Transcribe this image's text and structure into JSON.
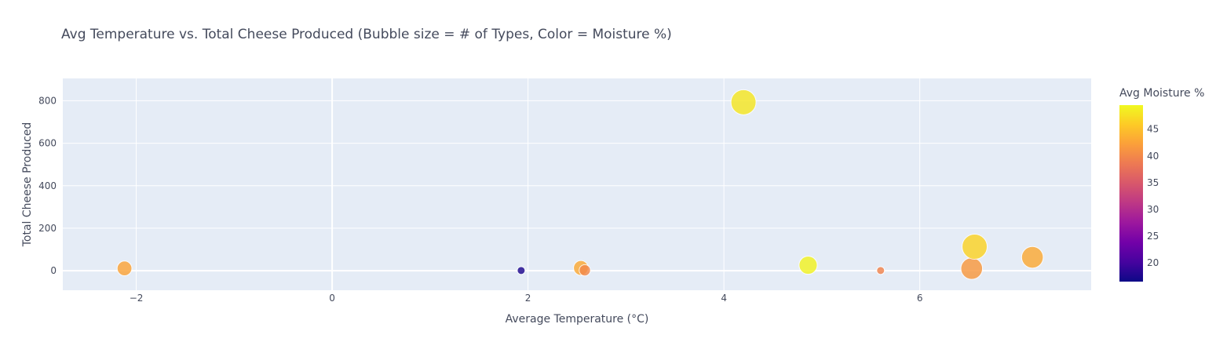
{
  "chart_data": {
    "type": "scatter",
    "title": "Avg Temperature vs. Total Cheese Produced (Bubble size = # of Types, Color = Moisture %)",
    "xlabel": "Average Temperature (°C)",
    "ylabel": "Total Cheese Produced",
    "xlim": [
      -2.75,
      7.75
    ],
    "ylim": [
      -92,
      905
    ],
    "xticks": [
      -2,
      0,
      2,
      4,
      6
    ],
    "yticks": [
      0,
      200,
      400,
      600,
      800
    ],
    "grid": true,
    "colorbar": {
      "title": "Avg Moisture %",
      "min": 16.5,
      "max": 49.5,
      "ticks": [
        20,
        25,
        30,
        35,
        40,
        45
      ]
    },
    "points": [
      {
        "x": -2.12,
        "y": 11,
        "size": 3,
        "moisture": 42.5
      },
      {
        "x": 1.93,
        "y": 1,
        "size": 1,
        "moisture": 17.5
      },
      {
        "x": 2.54,
        "y": 13,
        "size": 3,
        "moisture": 43.0
      },
      {
        "x": 2.58,
        "y": 2,
        "size": 2,
        "moisture": 40.0
      },
      {
        "x": 4.2,
        "y": 793,
        "size": 6,
        "moisture": 48.0
      },
      {
        "x": 4.86,
        "y": 26,
        "size": 4,
        "moisture": 49.0
      },
      {
        "x": 5.6,
        "y": 1,
        "size": 1,
        "moisture": 39.5
      },
      {
        "x": 6.53,
        "y": 10,
        "size": 5,
        "moisture": 41.5
      },
      {
        "x": 6.56,
        "y": 113,
        "size": 6,
        "moisture": 46.5
      },
      {
        "x": 7.15,
        "y": 63,
        "size": 5,
        "moisture": 43.0
      }
    ]
  }
}
